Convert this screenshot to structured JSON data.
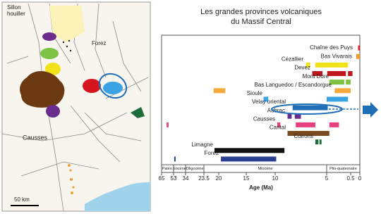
{
  "map": {
    "labels": [
      "Sillon",
      "houiller",
      "Forez",
      "Causses"
    ],
    "scale": "50 km"
  },
  "chart_data": {
    "type": "range-bar",
    "title": [
      "Les grandes provinces volcaniques",
      "du Massif Central"
    ],
    "x_label": "Age (Ma)",
    "xlim": [
      65,
      0
    ],
    "xticks": [
      65,
      53,
      34,
      23.5,
      20,
      15,
      10,
      5,
      0.5,
      0
    ],
    "epochs": [
      {
        "label": "Paléo.",
        "range": [
          65,
          53
        ]
      },
      {
        "label": "Eocène",
        "range": [
          53,
          34
        ]
      },
      {
        "label": "Oligocène",
        "range": [
          34,
          23.5
        ]
      },
      {
        "label": "Miocène",
        "range": [
          23.5,
          5
        ]
      },
      {
        "label": "Plio-quaternaire",
        "range": [
          5,
          0
        ]
      }
    ],
    "series": [
      {
        "name": "Chaîne des Puys",
        "color": "#e0242c",
        "ranges": [
          [
            0.1,
            0
          ]
        ]
      },
      {
        "name": "Bas Vivarais",
        "color": "#f39a2c",
        "ranges": [
          [
            0.2,
            0
          ]
        ]
      },
      {
        "name": "Cézallier",
        "color": "#f2e21a",
        "ranges": [
          [
            7,
            6.6
          ],
          [
            6.1,
            1
          ]
        ]
      },
      {
        "name": "Devez",
        "color": "#c0161f",
        "ranges": [
          [
            6.4,
            5.4
          ],
          [
            4.9,
            1.4
          ],
          [
            1,
            0.4
          ]
        ]
      },
      {
        "name": "Mont Dore",
        "color": "#7dc242",
        "ranges": [
          [
            4.5,
            1.7
          ],
          [
            1.4,
            0.5
          ]
        ]
      },
      {
        "name": "Bas Languedoc / Escandorgue",
        "color": "#f6a93b",
        "ranges": [
          [
            21.2,
            18.8
          ],
          [
            3.5,
            0.5
          ]
        ]
      },
      {
        "name": "Sioule",
        "color": "#3aa3e3",
        "ranges": [
          [
            12,
            11.2
          ],
          [
            5,
            1
          ]
        ]
      },
      {
        "name": "Velay oriental",
        "color": "#1f6fb8",
        "ranges": [
          [
            8.3,
            4.8
          ]
        ]
      },
      {
        "name": "Aubrac",
        "color": "#6a2d8e",
        "ranges": [
          [
            8.8,
            8.4
          ],
          [
            8.1,
            7.5
          ]
        ]
      },
      {
        "name": "Causses",
        "color": "#e8407f",
        "ranges": [
          [
            60,
            58
          ],
          [
            9.8,
            9.5
          ],
          [
            8,
            6.1
          ],
          [
            4.5,
            2.7
          ]
        ]
      },
      {
        "name": "Cantal",
        "color": "#7a4a1e",
        "ranges": [
          [
            8.8,
            4.5
          ]
        ]
      },
      {
        "name": "Coirons",
        "color": "#1d6b3a",
        "ranges": [
          [
            6.1,
            5.8
          ],
          [
            5.7,
            5.5
          ]
        ]
      },
      {
        "name": "Limagne",
        "color": "#111111",
        "ranges": [
          [
            21,
            9.1
          ]
        ]
      },
      {
        "name": "Forez",
        "color": "#2a3f8f",
        "ranges": [
          [
            52,
            50
          ],
          [
            19.6,
            9.9
          ]
        ]
      }
    ]
  }
}
